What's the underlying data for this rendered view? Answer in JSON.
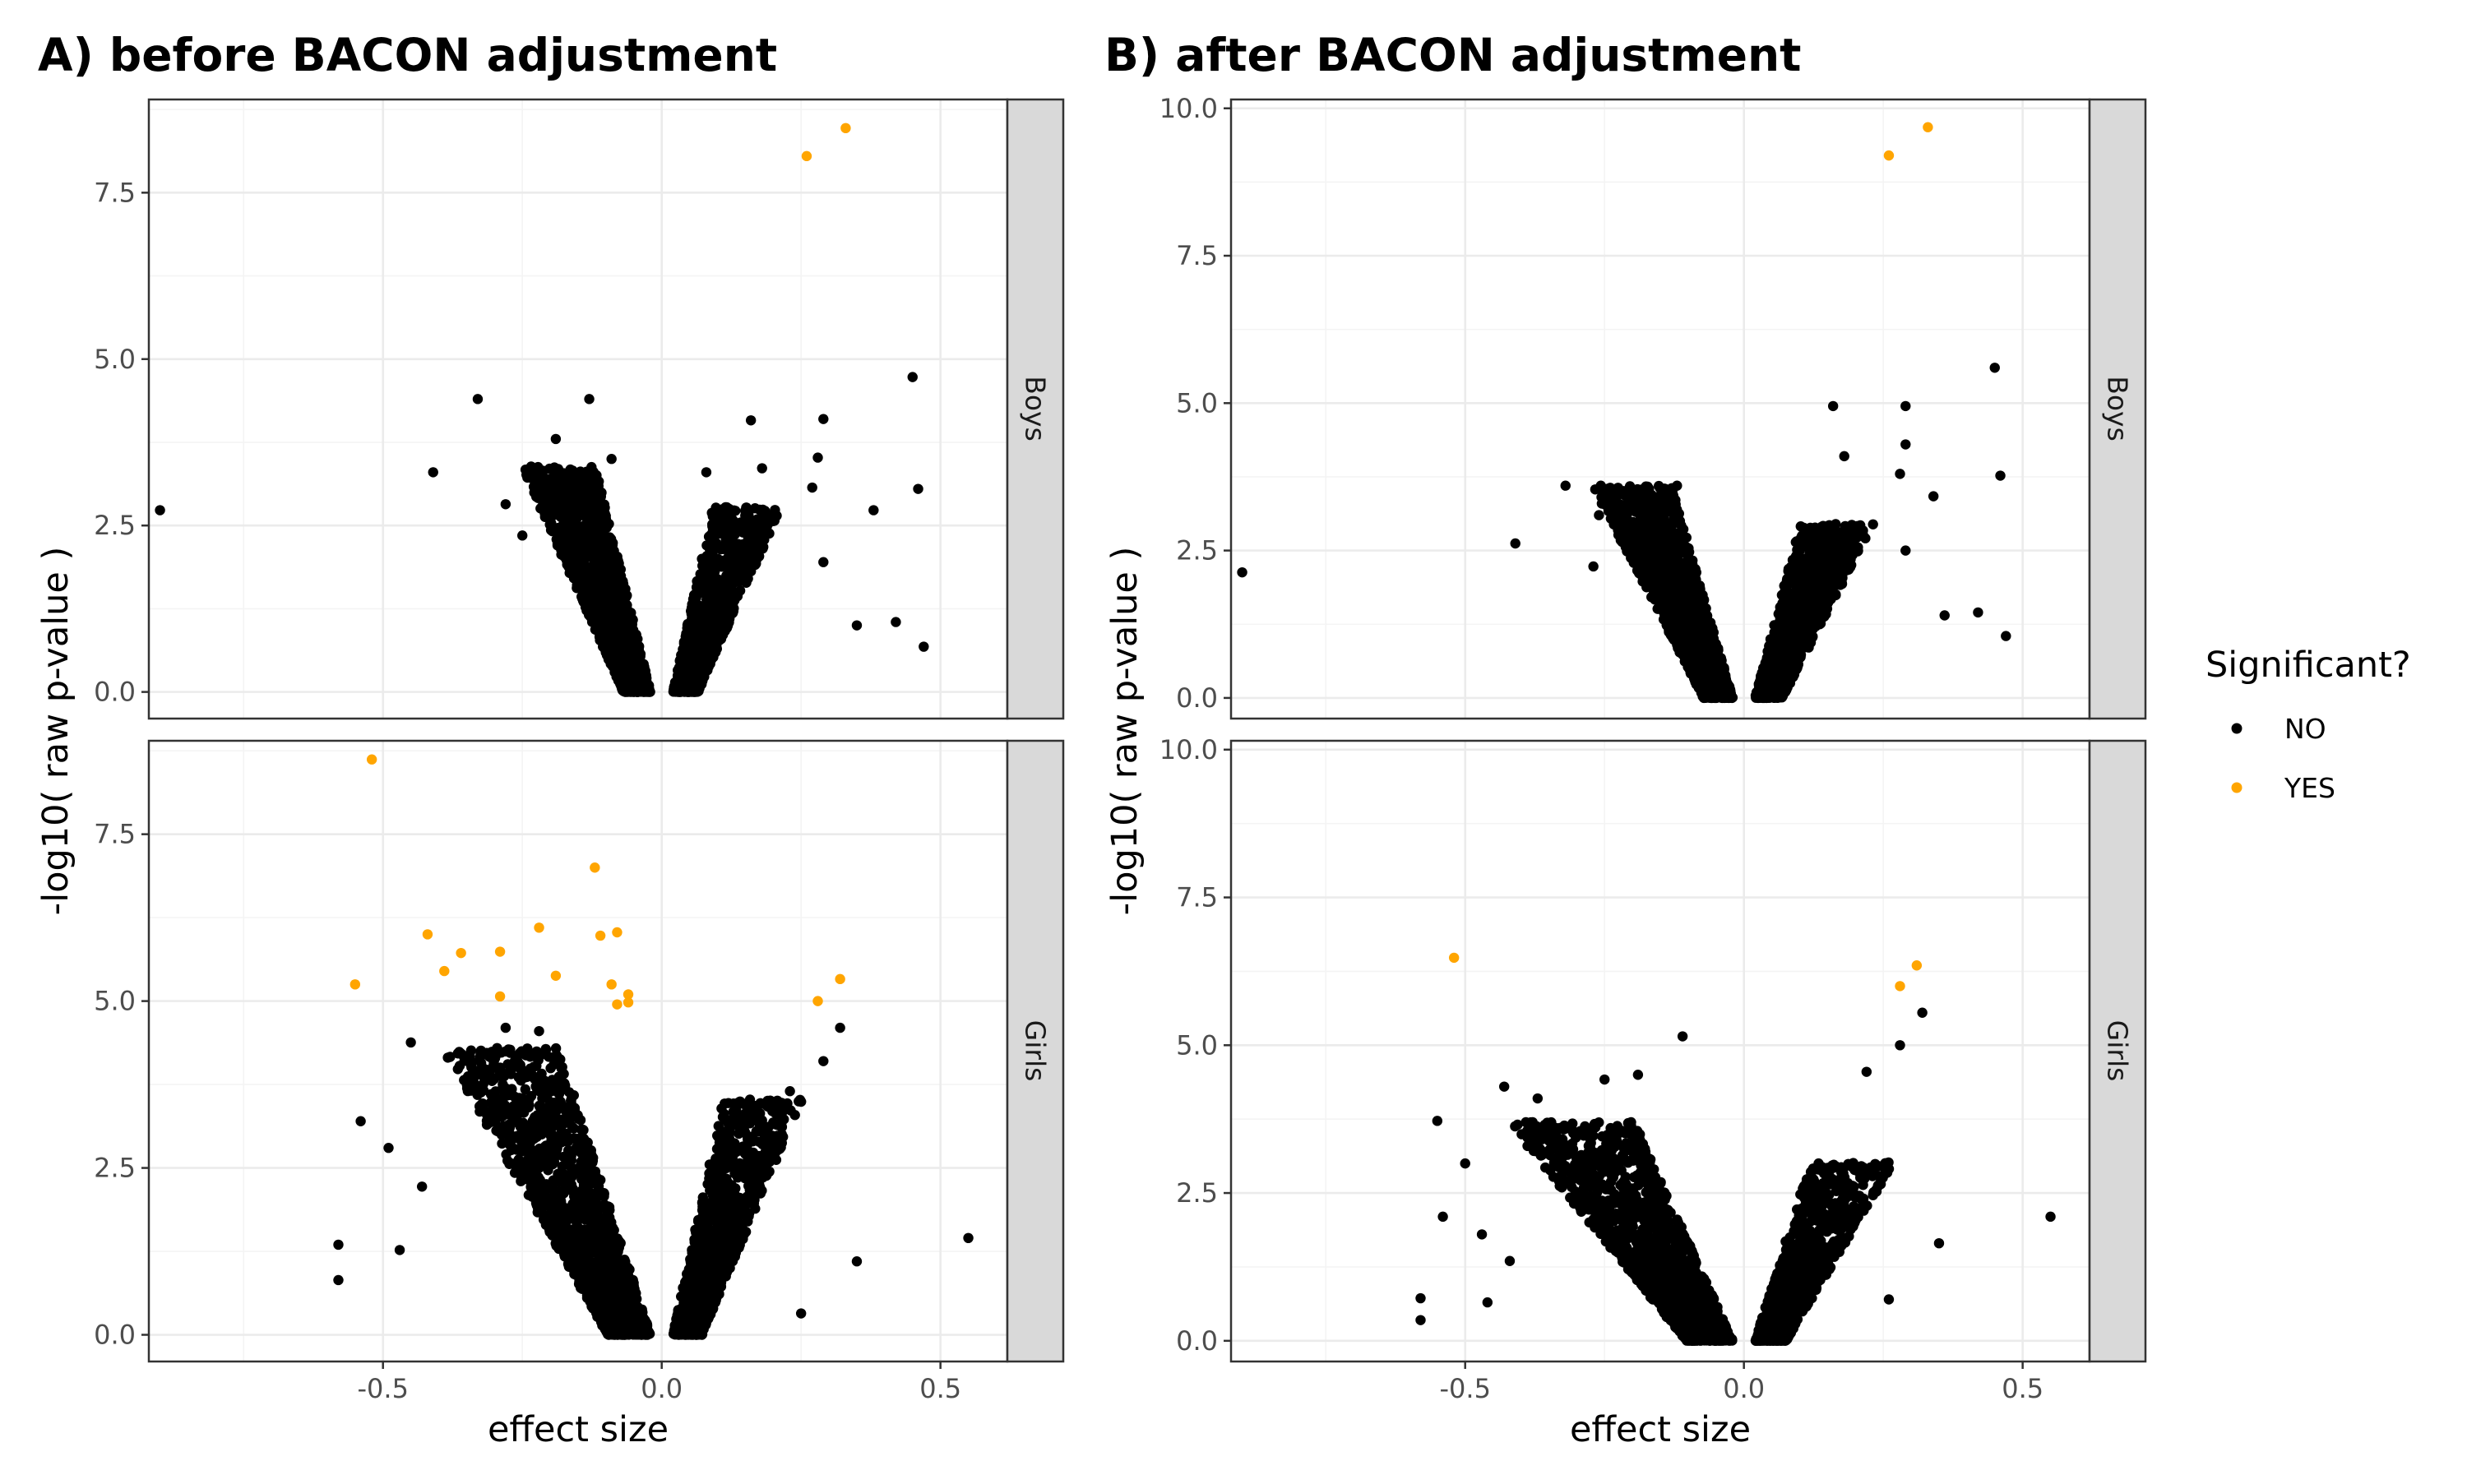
{
  "chart_data": [
    {
      "type": "scatter",
      "title": "A) before BACON adjustment",
      "xlabel": "effect size",
      "ylabel": "-log10( raw p-value )",
      "xlim": [
        -0.92,
        0.62
      ],
      "x_ticks": [
        "-0.5",
        "0.0",
        "0.5"
      ],
      "grid": true,
      "facets": [
        {
          "label": "Boys",
          "ylim": [
            -0.4,
            8.9
          ],
          "y_ticks": [
            "0.0",
            "2.5",
            "5.0",
            "7.5"
          ],
          "cloud": {
            "left_min": -0.18,
            "left_spread": 0.14,
            "right_max": 0.16,
            "right_spread": 0.13,
            "ymax": 3.4
          },
          "points": [
            {
              "x": 0.26,
              "y": 8.05,
              "sig": "YES"
            },
            {
              "x": 0.33,
              "y": 8.47,
              "sig": "YES"
            },
            {
              "x": -0.9,
              "y": 2.73,
              "sig": "NO"
            },
            {
              "x": -0.41,
              "y": 3.3,
              "sig": "NO"
            },
            {
              "x": -0.33,
              "y": 4.4,
              "sig": "NO"
            },
            {
              "x": -0.28,
              "y": 2.82,
              "sig": "NO"
            },
            {
              "x": -0.25,
              "y": 2.35,
              "sig": "NO"
            },
            {
              "x": -0.19,
              "y": 3.8,
              "sig": "NO"
            },
            {
              "x": -0.13,
              "y": 4.4,
              "sig": "NO"
            },
            {
              "x": -0.09,
              "y": 3.5,
              "sig": "NO"
            },
            {
              "x": 0.08,
              "y": 3.3,
              "sig": "NO"
            },
            {
              "x": 0.16,
              "y": 4.08,
              "sig": "NO"
            },
            {
              "x": 0.18,
              "y": 3.36,
              "sig": "NO"
            },
            {
              "x": 0.27,
              "y": 3.07,
              "sig": "NO"
            },
            {
              "x": 0.28,
              "y": 3.52,
              "sig": "NO"
            },
            {
              "x": 0.29,
              "y": 4.1,
              "sig": "NO"
            },
            {
              "x": 0.29,
              "y": 1.95,
              "sig": "NO"
            },
            {
              "x": 0.35,
              "y": 1.0,
              "sig": "NO"
            },
            {
              "x": 0.38,
              "y": 2.73,
              "sig": "NO"
            },
            {
              "x": 0.42,
              "y": 1.05,
              "sig": "NO"
            },
            {
              "x": 0.45,
              "y": 4.73,
              "sig": "NO"
            },
            {
              "x": 0.46,
              "y": 3.05,
              "sig": "NO"
            },
            {
              "x": 0.47,
              "y": 0.68,
              "sig": "NO"
            }
          ]
        },
        {
          "label": "Girls",
          "ylim": [
            -0.4,
            8.9
          ],
          "y_ticks": [
            "0.0",
            "2.5",
            "5.0",
            "7.5"
          ],
          "cloud": {
            "left_min": -0.3,
            "left_spread": 0.22,
            "right_max": 0.2,
            "right_spread": 0.15,
            "ymax": 4.3
          },
          "points": [
            {
              "x": -0.52,
              "y": 8.62,
              "sig": "YES"
            },
            {
              "x": -0.55,
              "y": 5.25,
              "sig": "YES"
            },
            {
              "x": -0.42,
              "y": 6.0,
              "sig": "YES"
            },
            {
              "x": -0.39,
              "y": 5.45,
              "sig": "YES"
            },
            {
              "x": -0.36,
              "y": 5.72,
              "sig": "YES"
            },
            {
              "x": -0.29,
              "y": 5.74,
              "sig": "YES"
            },
            {
              "x": -0.29,
              "y": 5.07,
              "sig": "YES"
            },
            {
              "x": -0.22,
              "y": 6.1,
              "sig": "YES"
            },
            {
              "x": -0.19,
              "y": 5.38,
              "sig": "YES"
            },
            {
              "x": -0.12,
              "y": 7.0,
              "sig": "YES"
            },
            {
              "x": -0.11,
              "y": 5.98,
              "sig": "YES"
            },
            {
              "x": -0.08,
              "y": 6.03,
              "sig": "YES"
            },
            {
              "x": -0.09,
              "y": 5.25,
              "sig": "YES"
            },
            {
              "x": -0.06,
              "y": 5.1,
              "sig": "YES"
            },
            {
              "x": -0.06,
              "y": 4.98,
              "sig": "YES"
            },
            {
              "x": -0.08,
              "y": 4.95,
              "sig": "YES"
            },
            {
              "x": 0.28,
              "y": 5.0,
              "sig": "YES"
            },
            {
              "x": 0.32,
              "y": 5.33,
              "sig": "YES"
            },
            {
              "x": -0.58,
              "y": 1.35,
              "sig": "NO"
            },
            {
              "x": -0.58,
              "y": 0.82,
              "sig": "NO"
            },
            {
              "x": -0.54,
              "y": 3.2,
              "sig": "NO"
            },
            {
              "x": -0.49,
              "y": 2.8,
              "sig": "NO"
            },
            {
              "x": -0.47,
              "y": 1.27,
              "sig": "NO"
            },
            {
              "x": -0.45,
              "y": 4.38,
              "sig": "NO"
            },
            {
              "x": -0.43,
              "y": 2.22,
              "sig": "NO"
            },
            {
              "x": -0.34,
              "y": 3.9,
              "sig": "NO"
            },
            {
              "x": -0.28,
              "y": 4.6,
              "sig": "NO"
            },
            {
              "x": -0.22,
              "y": 4.55,
              "sig": "NO"
            },
            {
              "x": 0.23,
              "y": 3.65,
              "sig": "NO"
            },
            {
              "x": 0.25,
              "y": 0.32,
              "sig": "NO"
            },
            {
              "x": 0.29,
              "y": 4.1,
              "sig": "NO"
            },
            {
              "x": 0.32,
              "y": 4.6,
              "sig": "NO"
            },
            {
              "x": 0.35,
              "y": 1.1,
              "sig": "NO"
            },
            {
              "x": 0.55,
              "y": 1.45,
              "sig": "NO"
            }
          ]
        }
      ]
    },
    {
      "type": "scatter",
      "title": "B) after BACON adjustment",
      "xlabel": "effect size",
      "ylabel": "-log10( raw p-value )",
      "xlim": [
        -0.92,
        0.62
      ],
      "x_ticks": [
        "-0.5",
        "0.0",
        "0.5"
      ],
      "grid": true,
      "facets": [
        {
          "label": "Boys",
          "ylim": [
            -0.35,
            10.15
          ],
          "y_ticks": [
            "0.0",
            "2.5",
            "5.0",
            "7.5",
            "10.0"
          ],
          "cloud": {
            "left_min": -0.2,
            "left_spread": 0.15,
            "right_max": 0.18,
            "right_spread": 0.14,
            "ymax": 3.6
          },
          "points": [
            {
              "x": 0.26,
              "y": 9.2,
              "sig": "YES"
            },
            {
              "x": 0.33,
              "y": 9.68,
              "sig": "YES"
            },
            {
              "x": -0.9,
              "y": 2.13,
              "sig": "NO"
            },
            {
              "x": -0.41,
              "y": 2.62,
              "sig": "NO"
            },
            {
              "x": -0.32,
              "y": 3.6,
              "sig": "NO"
            },
            {
              "x": -0.27,
              "y": 2.23,
              "sig": "NO"
            },
            {
              "x": -0.26,
              "y": 3.1,
              "sig": "NO"
            },
            {
              "x": -0.12,
              "y": 3.6,
              "sig": "NO"
            },
            {
              "x": 0.16,
              "y": 4.95,
              "sig": "NO"
            },
            {
              "x": 0.18,
              "y": 4.1,
              "sig": "NO"
            },
            {
              "x": 0.28,
              "y": 3.8,
              "sig": "NO"
            },
            {
              "x": 0.29,
              "y": 4.95,
              "sig": "NO"
            },
            {
              "x": 0.29,
              "y": 4.3,
              "sig": "NO"
            },
            {
              "x": 0.29,
              "y": 2.5,
              "sig": "NO"
            },
            {
              "x": 0.34,
              "y": 3.42,
              "sig": "NO"
            },
            {
              "x": 0.36,
              "y": 1.4,
              "sig": "NO"
            },
            {
              "x": 0.42,
              "y": 1.45,
              "sig": "NO"
            },
            {
              "x": 0.45,
              "y": 5.6,
              "sig": "NO"
            },
            {
              "x": 0.46,
              "y": 3.77,
              "sig": "NO"
            },
            {
              "x": 0.47,
              "y": 1.05,
              "sig": "NO"
            }
          ]
        },
        {
          "label": "Girls",
          "ylim": [
            -0.35,
            10.15
          ],
          "y_ticks": [
            "0.0",
            "2.5",
            "5.0",
            "7.5",
            "10.0"
          ],
          "cloud": {
            "left_min": -0.32,
            "left_spread": 0.24,
            "right_max": 0.22,
            "right_spread": 0.16,
            "ymax": 3.7
          },
          "points": [
            {
              "x": -0.52,
              "y": 6.48,
              "sig": "YES"
            },
            {
              "x": 0.28,
              "y": 6.0,
              "sig": "YES"
            },
            {
              "x": 0.31,
              "y": 6.35,
              "sig": "YES"
            },
            {
              "x": -0.58,
              "y": 0.72,
              "sig": "NO"
            },
            {
              "x": -0.58,
              "y": 0.35,
              "sig": "NO"
            },
            {
              "x": -0.55,
              "y": 3.72,
              "sig": "NO"
            },
            {
              "x": -0.54,
              "y": 2.1,
              "sig": "NO"
            },
            {
              "x": -0.5,
              "y": 3.0,
              "sig": "NO"
            },
            {
              "x": -0.47,
              "y": 1.8,
              "sig": "NO"
            },
            {
              "x": -0.46,
              "y": 0.65,
              "sig": "NO"
            },
            {
              "x": -0.43,
              "y": 4.3,
              "sig": "NO"
            },
            {
              "x": -0.42,
              "y": 1.35,
              "sig": "NO"
            },
            {
              "x": -0.37,
              "y": 4.1,
              "sig": "NO"
            },
            {
              "x": -0.33,
              "y": 3.6,
              "sig": "NO"
            },
            {
              "x": -0.25,
              "y": 4.42,
              "sig": "NO"
            },
            {
              "x": -0.19,
              "y": 4.5,
              "sig": "NO"
            },
            {
              "x": -0.11,
              "y": 5.15,
              "sig": "NO"
            },
            {
              "x": 0.22,
              "y": 4.55,
              "sig": "NO"
            },
            {
              "x": 0.26,
              "y": 0.7,
              "sig": "NO"
            },
            {
              "x": 0.28,
              "y": 5.0,
              "sig": "NO"
            },
            {
              "x": 0.32,
              "y": 5.55,
              "sig": "NO"
            },
            {
              "x": 0.35,
              "y": 1.65,
              "sig": "NO"
            },
            {
              "x": 0.55,
              "y": 2.1,
              "sig": "NO"
            }
          ]
        }
      ]
    }
  ],
  "legend": {
    "title": "Significant?",
    "placement": "right",
    "items": [
      {
        "label": "NO",
        "color": "#000000"
      },
      {
        "label": "YES",
        "color": "#FFA500"
      }
    ]
  },
  "colors": {
    "NO": "#000000",
    "YES": "#FFA500",
    "strip": "#D9D9D9",
    "grid_major": "#EBEBEB",
    "grid_minor": "#F4F4F4",
    "panel_border": "#333333"
  }
}
